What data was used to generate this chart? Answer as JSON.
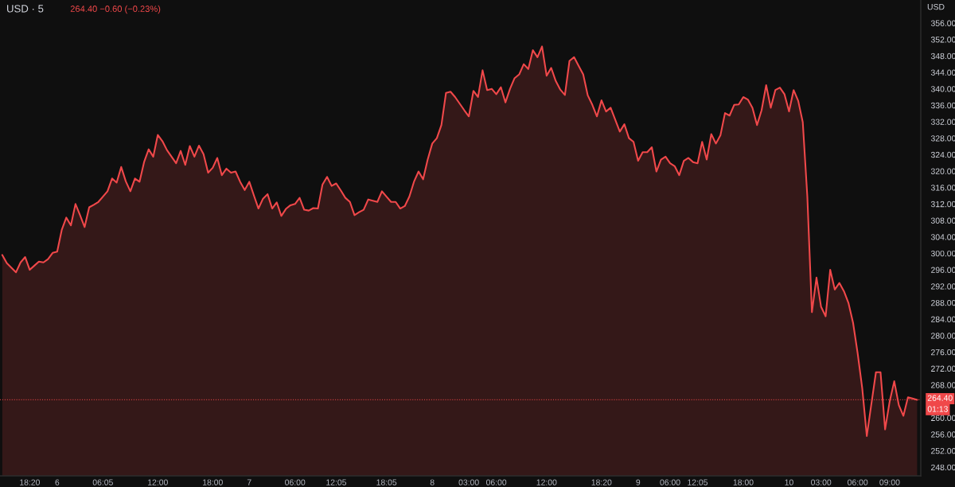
{
  "chart_data": {
    "type": "area",
    "title": "USD · 5",
    "subtitle": "264.40 −0.60 (−0.23%)",
    "ylabel": "USD",
    "categories": [
      null,
      null,
      null,
      null,
      null,
      null,
      "18:20",
      null,
      null,
      null,
      null,
      null,
      "6",
      null,
      null,
      null,
      null,
      null,
      null,
      null,
      null,
      null,
      "06:05",
      null,
      null,
      null,
      null,
      null,
      null,
      null,
      null,
      null,
      null,
      null,
      "12:00",
      null,
      null,
      null,
      null,
      null,
      null,
      null,
      null,
      null,
      null,
      null,
      "18:00",
      null,
      null,
      null,
      null,
      null,
      null,
      null,
      "7",
      null,
      null,
      null,
      null,
      null,
      null,
      null,
      null,
      null,
      "06:00",
      null,
      null,
      null,
      null,
      null,
      null,
      null,
      null,
      "12:05",
      null,
      null,
      null,
      null,
      null,
      null,
      null,
      null,
      null,
      null,
      "18:05",
      null,
      null,
      null,
      null,
      null,
      null,
      null,
      null,
      null,
      "8",
      null,
      null,
      null,
      null,
      null,
      null,
      null,
      "03:00",
      null,
      null,
      null,
      null,
      null,
      "06:00",
      null,
      null,
      null,
      null,
      null,
      null,
      null,
      null,
      null,
      null,
      "12:00",
      null,
      null,
      null,
      null,
      null,
      null,
      null,
      null,
      null,
      null,
      null,
      "18:20",
      null,
      null,
      null,
      null,
      null,
      null,
      null,
      "9",
      null,
      null,
      null,
      null,
      null,
      null,
      "06:00",
      null,
      null,
      null,
      null,
      null,
      "12:05",
      null,
      null,
      null,
      null,
      null,
      null,
      null,
      null,
      null,
      "18:00",
      null,
      null,
      null,
      null,
      null,
      null,
      null,
      null,
      null,
      "10",
      null,
      null,
      null,
      null,
      null,
      null,
      "03:00",
      null,
      null,
      null,
      null,
      null,
      null,
      null,
      "06:00",
      null,
      null,
      null,
      null,
      null,
      null,
      "09:00",
      null,
      null,
      null,
      null,
      null,
      null
    ],
    "values": [
      299.6,
      297.6,
      296.5,
      295.4,
      297.8,
      299.1,
      296.0,
      297.0,
      298.0,
      297.8,
      298.6,
      300.1,
      300.4,
      305.7,
      308.7,
      306.8,
      312.0,
      309.3,
      306.4,
      311.2,
      311.8,
      312.5,
      313.8,
      315.1,
      318.2,
      317.2,
      321.0,
      317.5,
      315.1,
      318.2,
      317.4,
      322.2,
      325.3,
      323.5,
      328.8,
      327.3,
      325.1,
      323.5,
      321.9,
      324.9,
      321.5,
      326.1,
      323.5,
      326.2,
      324.1,
      319.6,
      320.8,
      323.2,
      319.0,
      320.6,
      319.6,
      319.9,
      317.4,
      315.4,
      317.4,
      314.1,
      310.9,
      313.3,
      314.4,
      310.9,
      312.4,
      309.1,
      310.8,
      311.7,
      312.0,
      313.5,
      310.6,
      310.4,
      311.0,
      310.9,
      316.7,
      318.6,
      316.4,
      317.0,
      315.3,
      313.5,
      312.5,
      309.3,
      310.0,
      310.6,
      313.1,
      312.8,
      312.5,
      315.1,
      313.8,
      312.5,
      312.5,
      310.9,
      311.5,
      313.8,
      317.4,
      319.9,
      318.0,
      322.8,
      326.7,
      328.0,
      331.2,
      339.0,
      339.3,
      338.0,
      336.4,
      334.8,
      333.3,
      339.5,
      338.0,
      344.5,
      339.7,
      340.0,
      338.7,
      340.4,
      336.7,
      340.0,
      342.6,
      343.5,
      346.0,
      344.8,
      349.4,
      347.7,
      350.3,
      343.2,
      345.1,
      341.9,
      339.8,
      338.5,
      346.8,
      347.7,
      345.6,
      343.5,
      338.4,
      336.1,
      333.3,
      337.2,
      334.5,
      335.4,
      332.5,
      329.6,
      331.4,
      328.0,
      327.1,
      322.5,
      324.6,
      324.6,
      325.8,
      319.9,
      322.8,
      323.5,
      321.9,
      321.2,
      319.0,
      322.5,
      323.2,
      322.2,
      321.9,
      327.1,
      322.8,
      329.0,
      326.7,
      328.7,
      334.1,
      333.5,
      336.1,
      336.2,
      338.0,
      337.4,
      335.4,
      331.2,
      334.8,
      340.9,
      335.4,
      339.7,
      340.3,
      338.7,
      334.5,
      339.7,
      337.1,
      331.9,
      313.8,
      285.7,
      294.1,
      287.0,
      284.7,
      296.0,
      291.2,
      292.8,
      290.8,
      287.9,
      283.1,
      275.7,
      267.2,
      255.6,
      263.4,
      271.1,
      271.1,
      257.2,
      264.0,
      268.9,
      263.1,
      260.5,
      265.0,
      264.7,
      264.4
    ],
    "color": "#f0484a",
    "ylim": [
      245.9,
      361.6
    ],
    "yticks": [
      {
        "value": 248,
        "label": "248.00"
      },
      {
        "value": 252,
        "label": "252.00"
      },
      {
        "value": 256,
        "label": "256.00"
      },
      {
        "value": 260,
        "label": "260.00"
      },
      {
        "value": 268,
        "label": "268.00"
      },
      {
        "value": 272,
        "label": "272.00"
      },
      {
        "value": 276,
        "label": "276.00"
      },
      {
        "value": 280,
        "label": "280.00"
      },
      {
        "value": 284,
        "label": "284.00"
      },
      {
        "value": 288,
        "label": "288.00"
      },
      {
        "value": 292,
        "label": "292.00"
      },
      {
        "value": 296,
        "label": "296.00"
      },
      {
        "value": 300,
        "label": "300.00"
      },
      {
        "value": 304,
        "label": "304.00"
      },
      {
        "value": 308,
        "label": "308.00"
      },
      {
        "value": 312,
        "label": "312.00"
      },
      {
        "value": 316,
        "label": "316.00"
      },
      {
        "value": 320,
        "label": "320.00"
      },
      {
        "value": 324,
        "label": "324.00"
      },
      {
        "value": 328,
        "label": "328.00"
      },
      {
        "value": 332,
        "label": "332.00"
      },
      {
        "value": 336,
        "label": "336.00"
      },
      {
        "value": 340,
        "label": "340.00"
      },
      {
        "value": 344,
        "label": "344.00"
      },
      {
        "value": 348,
        "label": "348.00"
      },
      {
        "value": 352,
        "label": "352.00"
      },
      {
        "value": 356,
        "label": "356.00"
      }
    ],
    "ref_lines": [
      {
        "axis": "y",
        "value": 264.4,
        "label": "264.40",
        "color": "#f0484a",
        "line_style": "dotted"
      }
    ],
    "annotations": [
      "01:13"
    ],
    "grid": false
  }
}
